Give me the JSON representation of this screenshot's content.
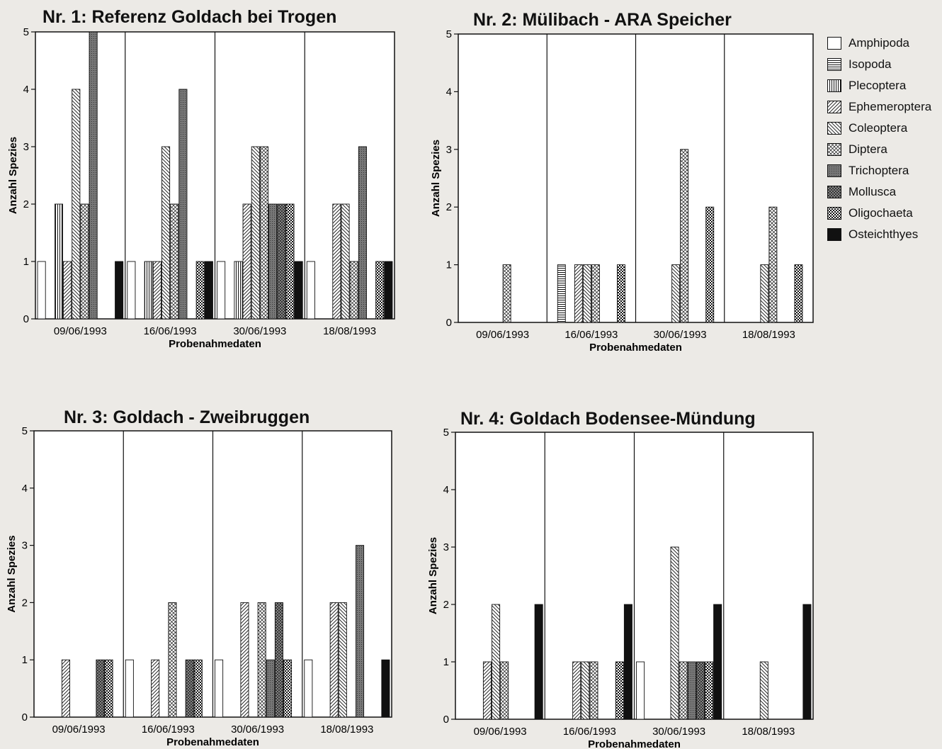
{
  "series_defs": [
    {
      "name": "Amphipoda",
      "pattern": "p-amph"
    },
    {
      "name": "Isopoda",
      "pattern": "p-iso"
    },
    {
      "name": "Plecoptera",
      "pattern": "p-pleco"
    },
    {
      "name": "Ephemeroptera",
      "pattern": "p-ephem"
    },
    {
      "name": "Coleoptera",
      "pattern": "p-coleo"
    },
    {
      "name": "Diptera",
      "pattern": "p-dipt"
    },
    {
      "name": "Trichoptera",
      "pattern": "p-trich"
    },
    {
      "name": "Mollusca",
      "pattern": "p-moll"
    },
    {
      "name": "Oligochaeta",
      "pattern": "p-oligo"
    },
    {
      "name": "Osteichthyes",
      "pattern": "p-oste"
    }
  ],
  "chart_data": [
    {
      "type": "bar",
      "title": "Nr. 1: Referenz Goldach bei Trogen",
      "xlabel": "Probenahmedaten",
      "ylabel": "Anzahl Spezies",
      "ylim": [
        0,
        5
      ],
      "yticks": [
        "0",
        "1",
        "2",
        "3",
        "4",
        "5"
      ],
      "categories": [
        "09/06/1993",
        "16/06/1993",
        "30/06/1993",
        "18/08/1993"
      ],
      "series": [
        {
          "name": "Amphipoda",
          "values": [
            1,
            1,
            1,
            1
          ]
        },
        {
          "name": "Isopoda",
          "values": [
            0,
            0,
            0,
            0
          ]
        },
        {
          "name": "Plecoptera",
          "values": [
            2,
            1,
            1,
            0
          ]
        },
        {
          "name": "Ephemeroptera",
          "values": [
            1,
            1,
            2,
            2
          ]
        },
        {
          "name": "Coleoptera",
          "values": [
            4,
            3,
            3,
            2
          ]
        },
        {
          "name": "Diptera",
          "values": [
            2,
            2,
            3,
            1
          ]
        },
        {
          "name": "Trichoptera",
          "values": [
            5,
            4,
            2,
            3
          ]
        },
        {
          "name": "Mollusca",
          "values": [
            0,
            0,
            2,
            0
          ]
        },
        {
          "name": "Oligochaeta",
          "values": [
            0,
            1,
            2,
            1
          ]
        },
        {
          "name": "Osteichthyes",
          "values": [
            1,
            1,
            1,
            1
          ]
        }
      ]
    },
    {
      "type": "bar",
      "title": "Nr. 2: Mülibach - ARA Speicher",
      "xlabel": "Probenahmedaten",
      "ylabel": "Anzahl Spezies",
      "ylim": [
        0,
        5
      ],
      "yticks": [
        "0",
        "1",
        "2",
        "3",
        "4",
        "5"
      ],
      "categories": [
        "09/06/1993",
        "16/06/1993",
        "30/06/1993",
        "18/08/1993"
      ],
      "series": [
        {
          "name": "Amphipoda",
          "values": [
            0,
            0,
            0,
            0
          ]
        },
        {
          "name": "Isopoda",
          "values": [
            0,
            1,
            0,
            0
          ]
        },
        {
          "name": "Plecoptera",
          "values": [
            0,
            0,
            0,
            0
          ]
        },
        {
          "name": "Ephemeroptera",
          "values": [
            0,
            1,
            0,
            0
          ]
        },
        {
          "name": "Coleoptera",
          "values": [
            0,
            1,
            1,
            1
          ]
        },
        {
          "name": "Diptera",
          "values": [
            1,
            1,
            3,
            2
          ]
        },
        {
          "name": "Trichoptera",
          "values": [
            0,
            0,
            0,
            0
          ]
        },
        {
          "name": "Mollusca",
          "values": [
            0,
            0,
            0,
            0
          ]
        },
        {
          "name": "Oligochaeta",
          "values": [
            0,
            1,
            2,
            1
          ]
        },
        {
          "name": "Osteichthyes",
          "values": [
            0,
            0,
            0,
            0
          ]
        }
      ]
    },
    {
      "type": "bar",
      "title": "Nr. 3: Goldach - Zweibruggen",
      "xlabel": "Probenahmedaten",
      "ylabel": "Anzahl Spezies",
      "ylim": [
        0,
        5
      ],
      "yticks": [
        "0",
        "1",
        "2",
        "3",
        "4",
        "5"
      ],
      "categories": [
        "09/06/1993",
        "16/06/1993",
        "30/06/1993",
        "18/08/1993"
      ],
      "series": [
        {
          "name": "Amphipoda",
          "values": [
            0,
            1,
            1,
            1
          ]
        },
        {
          "name": "Isopoda",
          "values": [
            0,
            0,
            0,
            0
          ]
        },
        {
          "name": "Plecoptera",
          "values": [
            0,
            0,
            0,
            0
          ]
        },
        {
          "name": "Ephemeroptera",
          "values": [
            1,
            1,
            2,
            2
          ]
        },
        {
          "name": "Coleoptera",
          "values": [
            0,
            0,
            0,
            2
          ]
        },
        {
          "name": "Diptera",
          "values": [
            0,
            2,
            2,
            0
          ]
        },
        {
          "name": "Trichoptera",
          "values": [
            0,
            0,
            1,
            3
          ]
        },
        {
          "name": "Mollusca",
          "values": [
            1,
            1,
            2,
            0
          ]
        },
        {
          "name": "Oligochaeta",
          "values": [
            1,
            1,
            1,
            0
          ]
        },
        {
          "name": "Osteichthyes",
          "values": [
            0,
            0,
            0,
            1
          ]
        }
      ]
    },
    {
      "type": "bar",
      "title": "Nr. 4: Goldach Bodensee-Mündung",
      "xlabel": "Probenahmedaten",
      "ylabel": "Anzahl Spezies",
      "ylim": [
        0,
        5
      ],
      "yticks": [
        "0",
        "1",
        "2",
        "3",
        "4",
        "5"
      ],
      "categories": [
        "09/06/1993",
        "16/06/1993",
        "30/06/1993",
        "18/08/1993"
      ],
      "series": [
        {
          "name": "Amphipoda",
          "values": [
            0,
            0,
            1,
            0
          ]
        },
        {
          "name": "Isopoda",
          "values": [
            0,
            0,
            0,
            0
          ]
        },
        {
          "name": "Plecoptera",
          "values": [
            0,
            0,
            0,
            0
          ]
        },
        {
          "name": "Ephemeroptera",
          "values": [
            1,
            1,
            0,
            0
          ]
        },
        {
          "name": "Coleoptera",
          "values": [
            2,
            1,
            3,
            1
          ]
        },
        {
          "name": "Diptera",
          "values": [
            1,
            1,
            1,
            0
          ]
        },
        {
          "name": "Trichoptera",
          "values": [
            0,
            0,
            1,
            0
          ]
        },
        {
          "name": "Mollusca",
          "values": [
            0,
            0,
            1,
            0
          ]
        },
        {
          "name": "Oligochaeta",
          "values": [
            0,
            1,
            1,
            0
          ]
        },
        {
          "name": "Osteichthyes",
          "values": [
            2,
            2,
            2,
            2
          ]
        }
      ]
    }
  ]
}
